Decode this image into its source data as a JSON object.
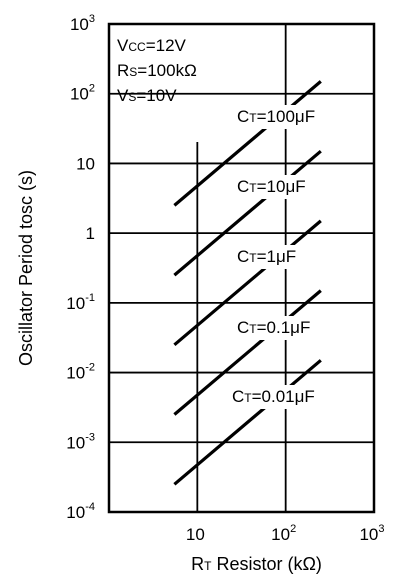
{
  "chart_data": {
    "type": "line",
    "title": "",
    "xlabel": {
      "main": "R",
      "sub": "T",
      "rest": " Resistor (kΩ)"
    },
    "ylabel": "Oscillator Period tosc (s)",
    "x_scale": "log",
    "y_scale": "log",
    "xlim": [
      1,
      1000
    ],
    "ylim": [
      0.0001,
      1000
    ],
    "grid": true,
    "x_ticks": [
      {
        "value": 10,
        "base": "10",
        "exp": ""
      },
      {
        "value": 100,
        "base": "10",
        "exp": "2"
      },
      {
        "value": 1000,
        "base": "10",
        "exp": "3"
      }
    ],
    "y_ticks": [
      {
        "value": 0.0001,
        "base": "10",
        "exp": "-4"
      },
      {
        "value": 0.001,
        "base": "10",
        "exp": "-3"
      },
      {
        "value": 0.01,
        "base": "10",
        "exp": "-2"
      },
      {
        "value": 0.1,
        "base": "10",
        "exp": "-1"
      },
      {
        "value": 1,
        "base": "1",
        "exp": ""
      },
      {
        "value": 10,
        "base": "10",
        "exp": ""
      },
      {
        "value": 100,
        "base": "10",
        "exp": "2"
      },
      {
        "value": 1000,
        "base": "10",
        "exp": "3"
      }
    ],
    "conditions": [
      {
        "main": "V",
        "sub": "CC",
        "rest": "=12V"
      },
      {
        "main": "R",
        "sub": "S",
        "rest": "=100kΩ"
      },
      {
        "main": "V",
        "sub": "S",
        "rest": "=10V"
      }
    ],
    "series": [
      {
        "label_main": "C",
        "label_sub": "T",
        "label_rest": "=100μF",
        "x": [
          5.5,
          250
        ],
        "y": [
          2.5,
          150
        ]
      },
      {
        "label_main": "C",
        "label_sub": "T",
        "label_rest": "=10μF",
        "x": [
          5.5,
          250
        ],
        "y": [
          0.25,
          15
        ]
      },
      {
        "label_main": "C",
        "label_sub": "T",
        "label_rest": "=1μF",
        "x": [
          5.5,
          250
        ],
        "y": [
          0.025,
          1.5
        ]
      },
      {
        "label_main": "C",
        "label_sub": "T",
        "label_rest": "=0.1μF",
        "x": [
          5.5,
          250
        ],
        "y": [
          0.0025,
          0.15
        ]
      },
      {
        "label_main": "C",
        "label_sub": "T",
        "label_rest": "=0.01μF",
        "x": [
          5.5,
          250
        ],
        "y": [
          0.00025,
          0.015
        ]
      }
    ],
    "colors": {
      "line": "#000000",
      "grid": "#000000",
      "background": "#ffffff"
    }
  }
}
